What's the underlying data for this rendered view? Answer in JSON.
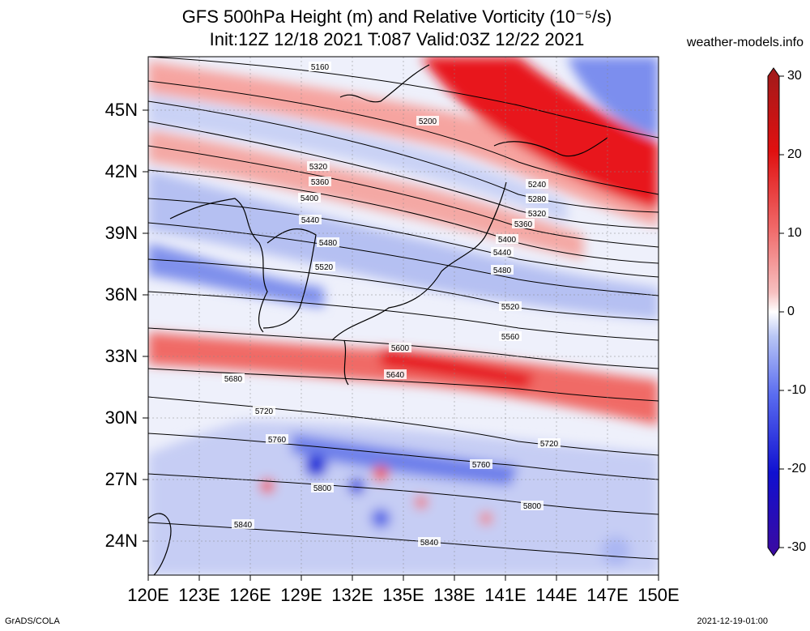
{
  "title": {
    "line1": "GFS 500hPa Height (m) and Relative Vorticity (10⁻⁵/s)",
    "line2": "Init:12Z 12/18 2021 T:087 Valid:03Z 12/22 2021"
  },
  "site_credit": "weather-models.info",
  "footer": {
    "left": "GrADS/COLA",
    "right": "2021-12-19-01:00"
  },
  "axes": {
    "lat_labels": [
      "45N",
      "42N",
      "39N",
      "36N",
      "33N",
      "30N",
      "27N",
      "24N"
    ],
    "lon_labels": [
      "120E",
      "123E",
      "126E",
      "129E",
      "132E",
      "135E",
      "138E",
      "141E",
      "144E",
      "147E",
      "150E"
    ]
  },
  "colorbar": {
    "labels": [
      "30",
      "20",
      "10",
      "0",
      "-10",
      "-20",
      "-30"
    ],
    "colors": [
      "#3b0aa0",
      "#1010d0",
      "#5a6cf0",
      "#b9c6f5",
      "#ffffff",
      "#f7c0c0",
      "#f06a6a",
      "#e01010",
      "#a01a1a"
    ]
  },
  "contour_labels": [
    "5160",
    "5200",
    "5240",
    "5280",
    "5320",
    "5360",
    "5400",
    "5440",
    "5480",
    "5520",
    "5560",
    "5600",
    "5640",
    "5680",
    "5720",
    "5760",
    "5800",
    "5840",
    "5320",
    "5360",
    "5400",
    "5440",
    "5480",
    "5520",
    "5720",
    "5760",
    "5800",
    "5840"
  ],
  "field_colors": {
    "strong_positive": "#e8151b",
    "positive": "#f27a74",
    "weak_positive": "#f8c6c3",
    "neutral": "#f3f4fb",
    "weak_negative": "#c3ccf3",
    "negative": "#7686ec",
    "strong_negative": "#1c2bd6",
    "land": "#000000",
    "grid": "#888888"
  }
}
